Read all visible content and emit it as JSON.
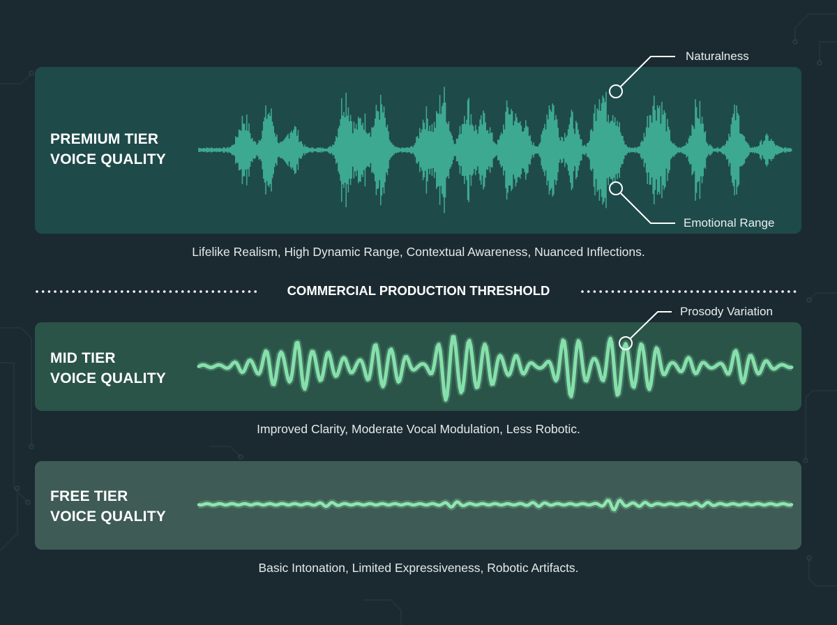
{
  "tiers": {
    "premium": {
      "title_line1": "PREMIUM TIER",
      "title_line2": "VOICE QUALITY",
      "caption": "Lifelike Realism, High Dynamic Range, Contextual Awareness, Nuanced Inflections.",
      "wave_color": "#3fae93",
      "panel_color": "#1f4a4a"
    },
    "mid": {
      "title_line1": "MID TIER",
      "title_line2": "VOICE QUALITY",
      "caption": "Improved Clarity, Moderate Vocal Modulation, Less Robotic.",
      "wave_color": "#86e0ab",
      "panel_color": "#2b5449"
    },
    "free": {
      "title_line1": "FREE TIER",
      "title_line2": "VOICE QUALITY",
      "caption": "Basic Intonation, Limited Expressiveness, Robotic Artifacts.",
      "wave_color": "#8fe6b0",
      "panel_color": "#3e5b55"
    }
  },
  "threshold": {
    "label": "COMMERCIAL PRODUCTION THRESHOLD"
  },
  "callouts": {
    "naturalness": "Naturalness",
    "emotional_range": "Emotional Range",
    "prosody_variation": "Prosody Variation"
  },
  "colors": {
    "background": "#1b2a31",
    "callout_line": "#ffffff"
  }
}
